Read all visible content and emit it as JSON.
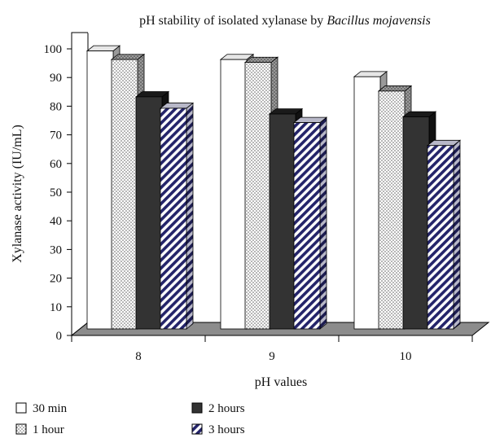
{
  "chart_data": {
    "type": "bar",
    "title_main": "pH stability of isolated xylanase by ",
    "title_italic": "Bacillus mojavensis",
    "xlabel": "pH values",
    "ylabel": "Xylanase activity (IU/mL)",
    "categories": [
      "8",
      "9",
      "10"
    ],
    "ylim": [
      0,
      100
    ],
    "yticks": [
      0,
      10,
      20,
      30,
      40,
      50,
      60,
      70,
      80,
      90,
      100
    ],
    "grid": false,
    "legend_position": "bottom",
    "series": [
      {
        "name": "30 min",
        "values": [
          97,
          94,
          88
        ],
        "fill": "white",
        "colors": {
          "front": "#ffffff",
          "top": "#e6e6e6",
          "side": "#9a9a9a"
        }
      },
      {
        "name": "1 hour",
        "values": [
          94,
          93,
          83
        ],
        "fill": "dots",
        "colors": {
          "front": "#ffffff",
          "top": "#c8c8c8",
          "side": "#8a8a8a"
        }
      },
      {
        "name": "2 hours",
        "values": [
          81,
          75,
          74
        ],
        "fill": "solid",
        "colors": {
          "front": "#333333",
          "top": "#1a1a1a",
          "side": "#111111"
        }
      },
      {
        "name": "3 hours",
        "values": [
          77,
          72,
          64
        ],
        "fill": "stripes",
        "colors": {
          "front": "#ffffff",
          "top": "#bcbcd6",
          "side": "#8a8aa8"
        }
      }
    ]
  }
}
